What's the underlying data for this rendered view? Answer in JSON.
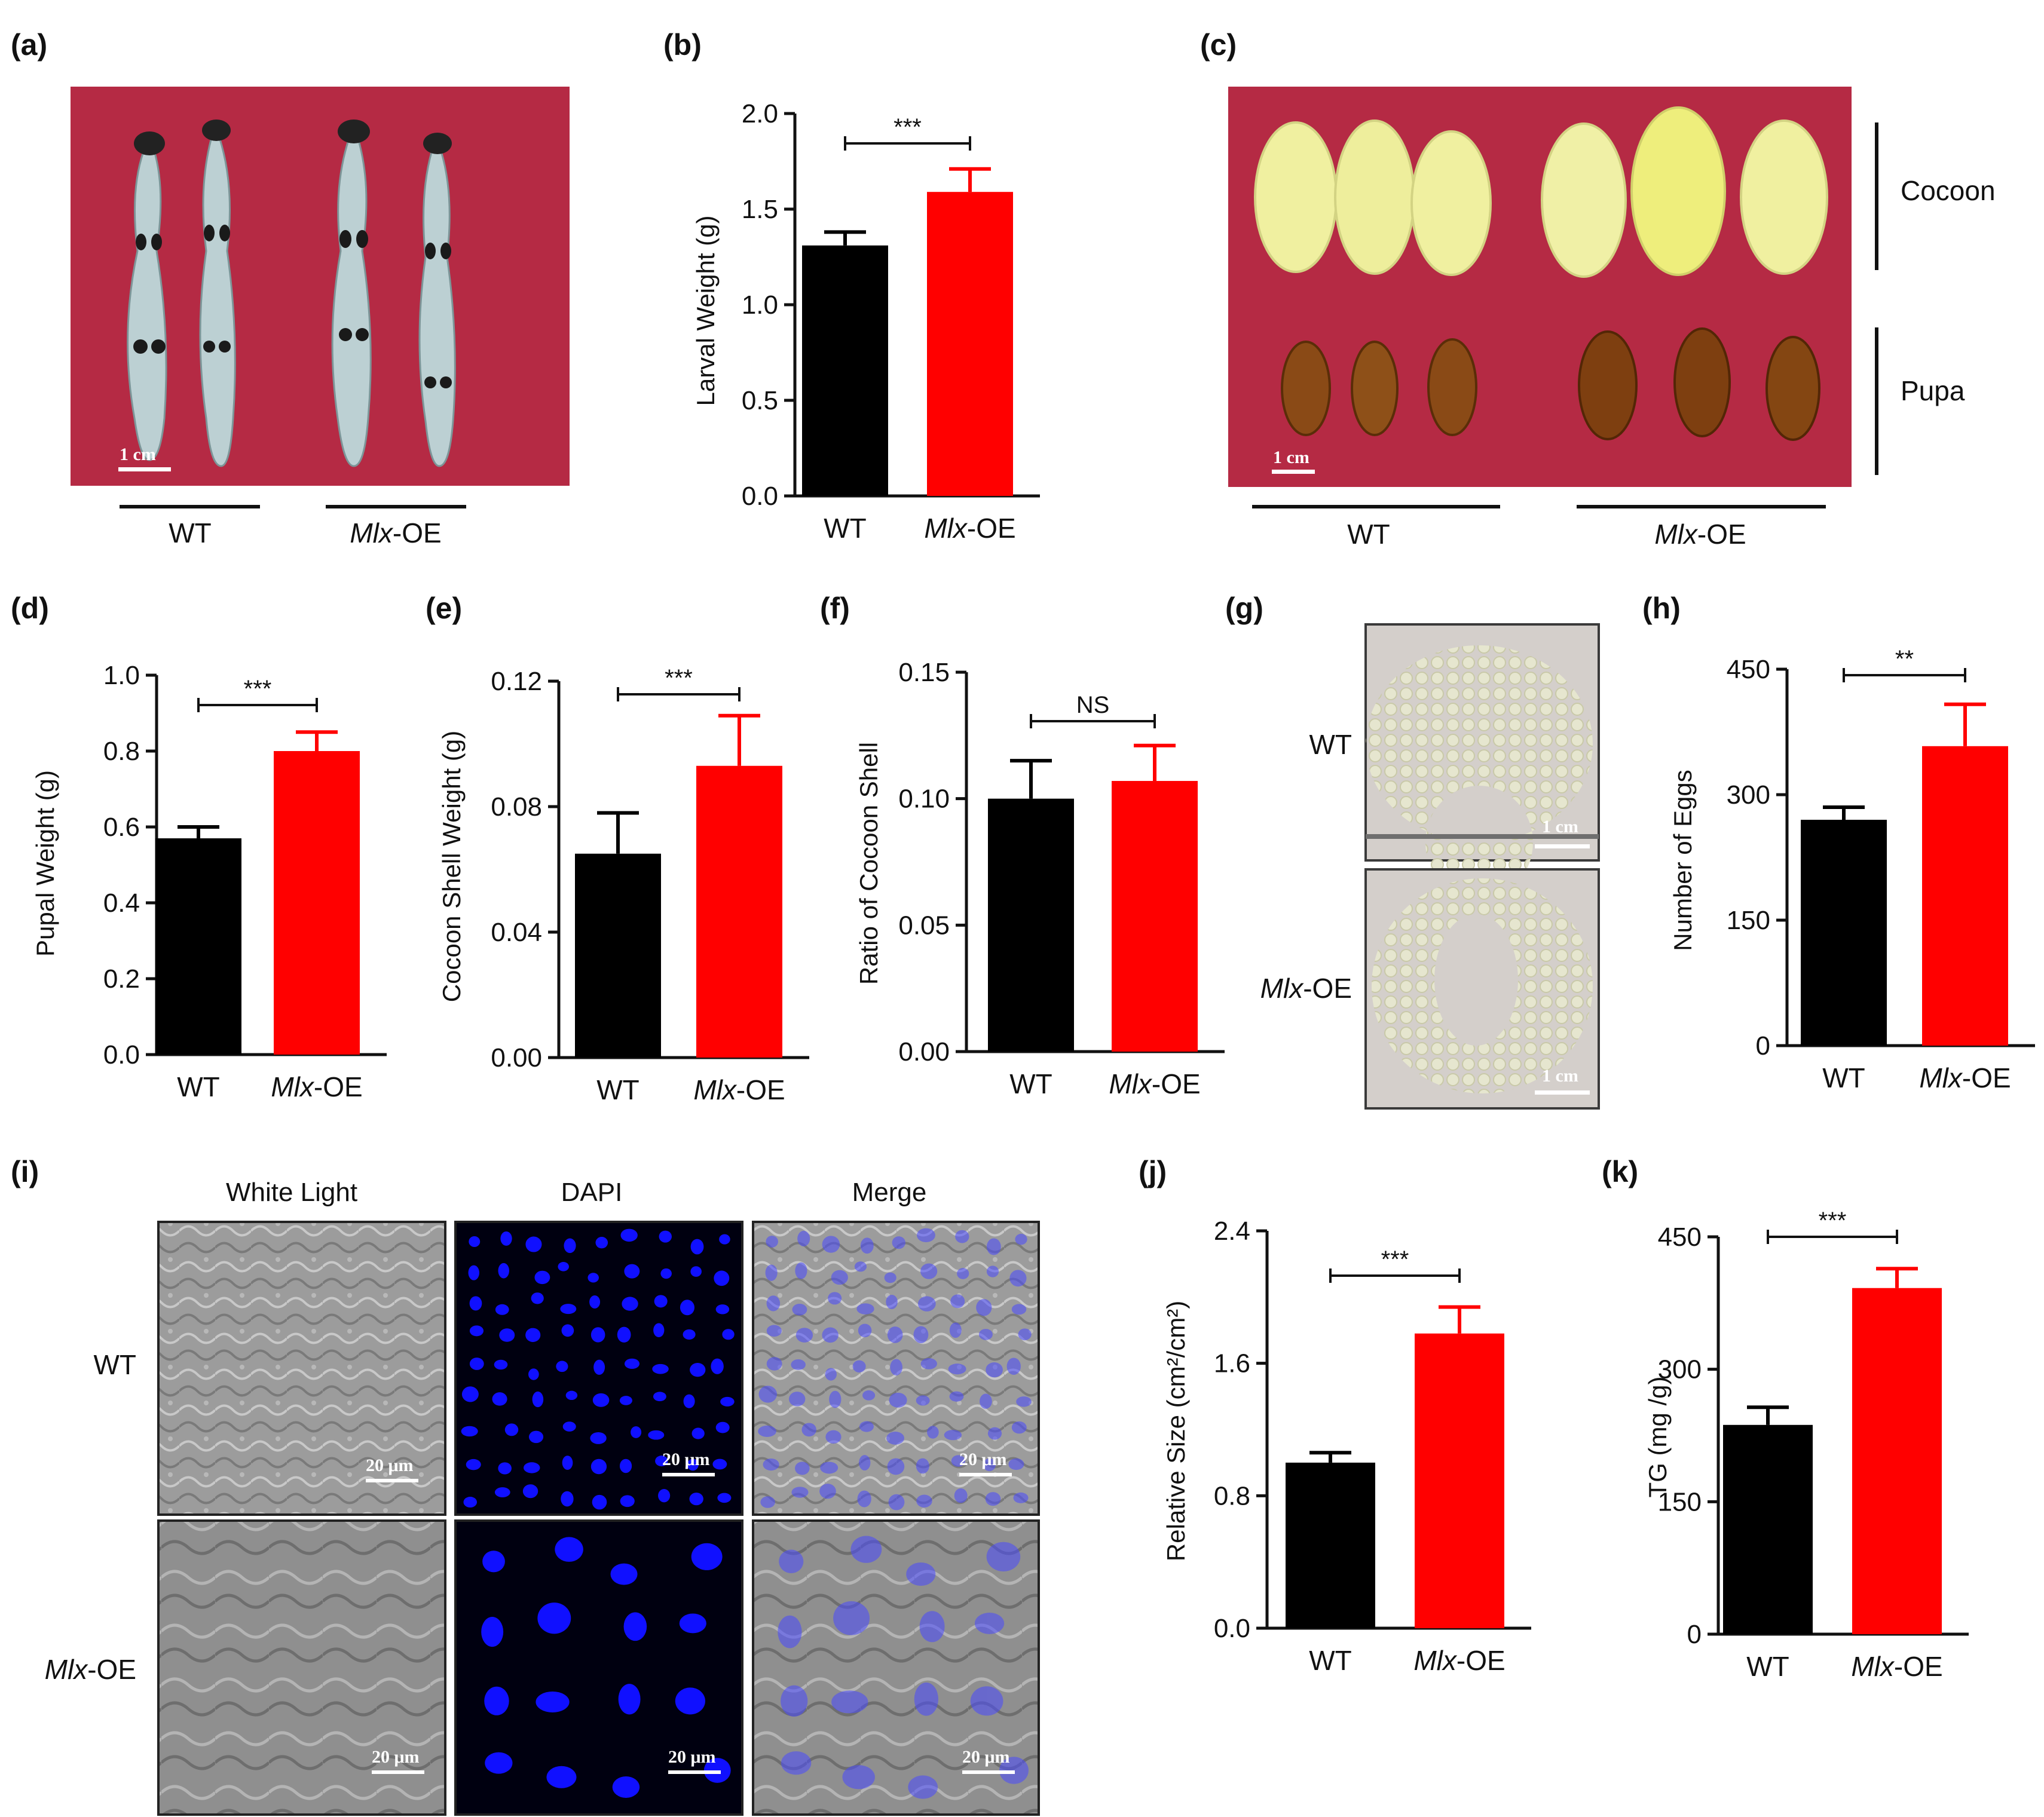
{
  "panel_letters": [
    "(a)",
    "(b)",
    "(c)",
    "(d)",
    "(e)",
    "(f)",
    "(g)",
    "(h)",
    "(i)",
    "(j)",
    "(k)"
  ],
  "groups": {
    "wt": "WT",
    "oe_italic": "Mlx",
    "oe_suffix": "-OE"
  },
  "colors": {
    "wt_bar": "#000000",
    "oe_bar": "#ff0000",
    "photo_bg": "#b52a44",
    "dapi": "#1010ff"
  },
  "photos": {
    "a": {
      "scale": "1 cm",
      "subject": "larvae"
    },
    "c": {
      "scale": "1 cm",
      "row_labels": [
        "Cocoon",
        "Pupa"
      ]
    },
    "g": {
      "scale": "1 cm",
      "row_labels": [
        "WT",
        "Mlx-OE"
      ]
    },
    "i": {
      "columns": [
        "White Light",
        "DAPI",
        "Merge"
      ],
      "rows": [
        "WT",
        "Mlx-OE"
      ],
      "scale": "20 μm"
    }
  },
  "chart_data": [
    {
      "panel": "(b)",
      "type": "bar",
      "categories": [
        "WT",
        "Mlx-OE"
      ],
      "values": [
        1.31,
        1.59
      ],
      "errors": [
        0.07,
        0.12
      ],
      "ylabel": "Larval  Weight (g)",
      "ylim": [
        0,
        2.0
      ],
      "yticks": [
        "0.0",
        "0.5",
        "1.0",
        "1.5",
        "2.0"
      ],
      "significance": "***"
    },
    {
      "panel": "(d)",
      "type": "bar",
      "categories": [
        "WT",
        "Mlx-OE"
      ],
      "values": [
        0.57,
        0.8
      ],
      "errors": [
        0.03,
        0.05
      ],
      "ylabel": "Pupal  Weight (g)",
      "ylim": [
        0,
        1.0
      ],
      "yticks": [
        "0.0",
        "0.2",
        "0.4",
        "0.6",
        "0.8",
        "1.0"
      ],
      "significance": "***"
    },
    {
      "panel": "(e)",
      "type": "bar",
      "categories": [
        "WT",
        "Mlx-OE"
      ],
      "values": [
        0.065,
        0.093
      ],
      "errors": [
        0.013,
        0.016
      ],
      "ylabel": "Cocoon Shell Weight (g)",
      "ylim": [
        0,
        0.12
      ],
      "yticks": [
        "0.00",
        "0.04",
        "0.08",
        "0.12"
      ],
      "significance": "***"
    },
    {
      "panel": "(f)",
      "type": "bar",
      "categories": [
        "WT",
        "Mlx-OE"
      ],
      "values": [
        0.1,
        0.107
      ],
      "errors": [
        0.015,
        0.014
      ],
      "ylabel": "Ratio of Cocoon Shell",
      "ylim": [
        0,
        0.15
      ],
      "yticks": [
        "0.00",
        "0.05",
        "0.10",
        "0.15"
      ],
      "significance": "NS"
    },
    {
      "panel": "(h)",
      "type": "bar",
      "categories": [
        "WT",
        "Mlx-OE"
      ],
      "values": [
        270,
        358
      ],
      "errors": [
        15,
        50
      ],
      "ylabel": "Number of Eggs",
      "ylim": [
        0,
        450
      ],
      "yticks": [
        "0",
        "150",
        "300",
        "450"
      ],
      "significance": "**"
    },
    {
      "panel": "(j)",
      "type": "bar",
      "categories": [
        "WT",
        "Mlx-OE"
      ],
      "values": [
        1.0,
        1.78
      ],
      "errors": [
        0.06,
        0.16
      ],
      "ylabel": "Relative Size (cm²/cm²)",
      "ylim": [
        0,
        2.4
      ],
      "yticks": [
        "0.0",
        "0.8",
        "1.6",
        "2.4"
      ],
      "significance": "***"
    },
    {
      "panel": "(k)",
      "type": "bar",
      "categories": [
        "WT",
        "Mlx-OE"
      ],
      "values": [
        237,
        392
      ],
      "errors": [
        20,
        22
      ],
      "ylabel": "TG (mg /g)",
      "ylim": [
        0,
        450
      ],
      "yticks": [
        "0",
        "150",
        "300",
        "450"
      ],
      "significance": "***"
    }
  ]
}
